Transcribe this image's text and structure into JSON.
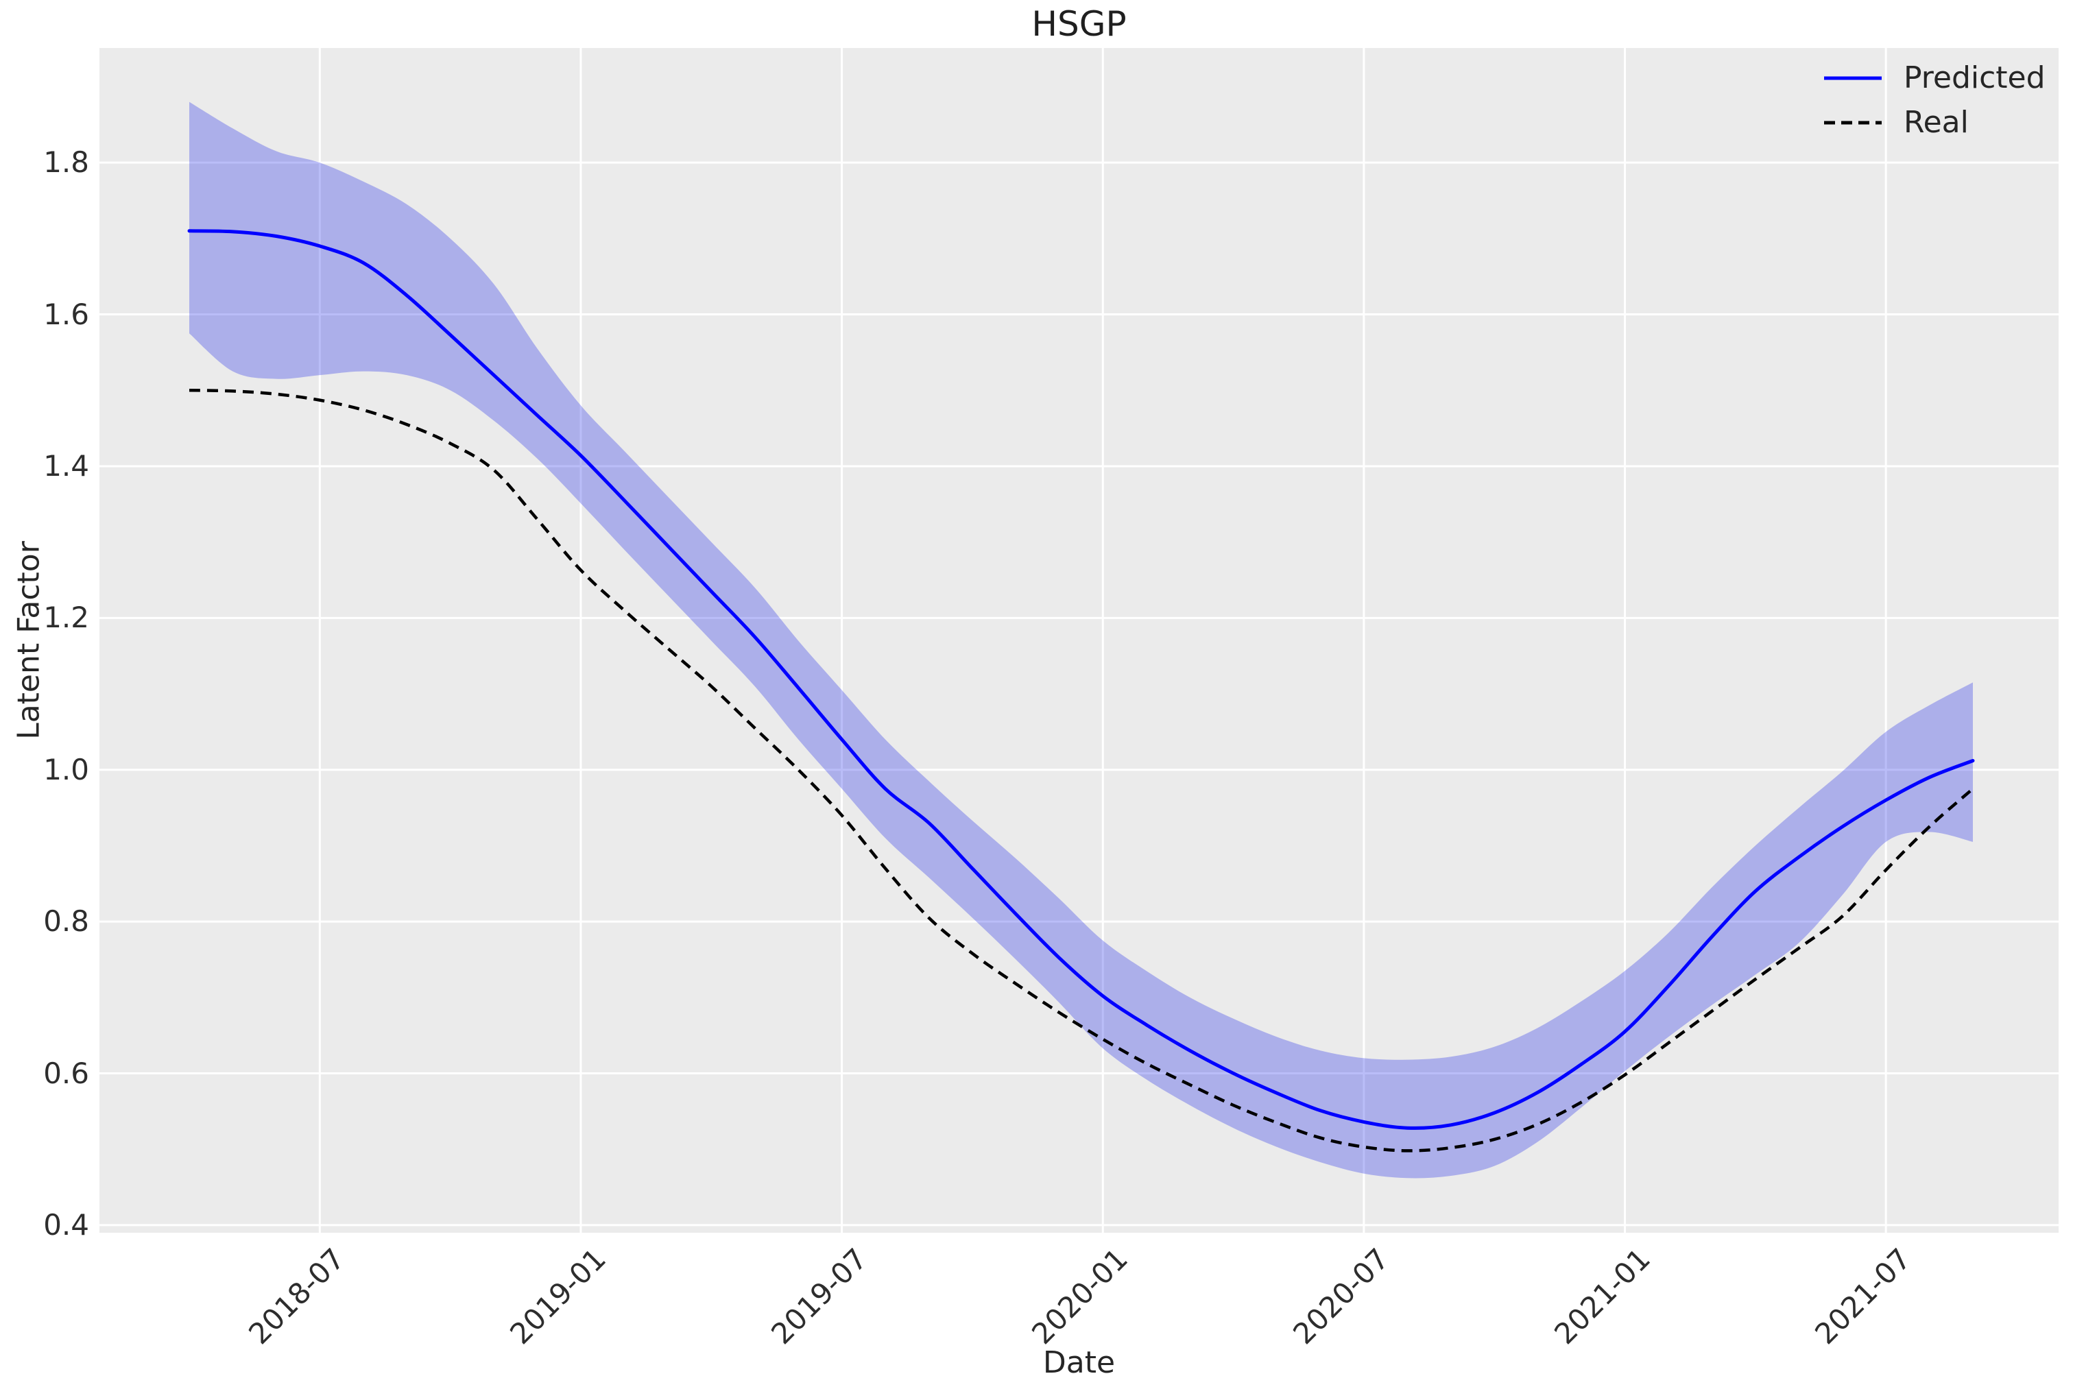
{
  "title": "HSGP",
  "chart_data": {
    "type": "line",
    "title": "HSGP",
    "xlabel": "Date",
    "ylabel": "Latent Factor",
    "grid": true,
    "legend_position": "upper right",
    "ylim": [
      0.39,
      1.95
    ],
    "x": [
      "2018-04",
      "2018-05",
      "2018-06",
      "2018-07",
      "2018-08",
      "2018-09",
      "2018-10",
      "2018-11",
      "2018-12",
      "2019-01",
      "2019-02",
      "2019-03",
      "2019-04",
      "2019-05",
      "2019-06",
      "2019-07",
      "2019-08",
      "2019-09",
      "2019-10",
      "2019-11",
      "2019-12",
      "2020-01",
      "2020-02",
      "2020-03",
      "2020-04",
      "2020-05",
      "2020-06",
      "2020-07",
      "2020-08",
      "2020-09",
      "2020-10",
      "2020-11",
      "2020-12",
      "2021-01",
      "2021-02",
      "2021-03",
      "2021-04",
      "2021-05",
      "2021-06",
      "2021-07",
      "2021-08",
      "2021-09"
    ],
    "x_tick_labels": [
      "2018-07",
      "2019-01",
      "2019-07",
      "2020-01",
      "2020-07",
      "2021-01",
      "2021-07"
    ],
    "x_tick_month_index": [
      3,
      9,
      15,
      21,
      27,
      33,
      39
    ],
    "y_tick_labels": [
      "0.4",
      "0.6",
      "0.8",
      "1.0",
      "1.2",
      "1.4",
      "1.6",
      "1.8"
    ],
    "y_tick_values": [
      0.4,
      0.6,
      0.8,
      1.0,
      1.2,
      1.4,
      1.6,
      1.8
    ],
    "series": [
      {
        "name": "Predicted",
        "style": "solid",
        "color": "#0000ff",
        "values": [
          1.71,
          1.709,
          1.703,
          1.69,
          1.668,
          1.625,
          1.573,
          1.52,
          1.467,
          1.414,
          1.355,
          1.295,
          1.235,
          1.175,
          1.108,
          1.04,
          0.975,
          0.93,
          0.87,
          0.81,
          0.752,
          0.702,
          0.664,
          0.63,
          0.6,
          0.574,
          0.551,
          0.536,
          0.528,
          0.532,
          0.548,
          0.575,
          0.612,
          0.655,
          0.715,
          0.78,
          0.84,
          0.885,
          0.925,
          0.96,
          0.99,
          1.012
        ]
      },
      {
        "name": "Real",
        "style": "dashed",
        "color": "#000000",
        "values": [
          1.5,
          1.499,
          1.495,
          1.487,
          1.474,
          1.455,
          1.43,
          1.395,
          1.33,
          1.263,
          1.21,
          1.16,
          1.11,
          1.055,
          1.0,
          0.94,
          0.87,
          0.805,
          0.758,
          0.718,
          0.68,
          0.645,
          0.613,
          0.585,
          0.558,
          0.535,
          0.515,
          0.503,
          0.498,
          0.502,
          0.513,
          0.533,
          0.562,
          0.598,
          0.64,
          0.682,
          0.724,
          0.765,
          0.807,
          0.868,
          0.925,
          0.975
        ]
      },
      {
        "name": "Predicted CI lower",
        "style": "band_lower",
        "color": "rgba(28,36,232,0.30)",
        "values": [
          1.575,
          1.525,
          1.515,
          1.52,
          1.525,
          1.52,
          1.5,
          1.46,
          1.41,
          1.351,
          1.29,
          1.23,
          1.17,
          1.11,
          1.04,
          0.975,
          0.91,
          0.858,
          0.805,
          0.75,
          0.693,
          0.633,
          0.592,
          0.558,
          0.528,
          0.503,
          0.483,
          0.468,
          0.462,
          0.465,
          0.478,
          0.51,
          0.555,
          0.603,
          0.648,
          0.69,
          0.73,
          0.772,
          0.835,
          0.905,
          0.918,
          0.905
        ]
      },
      {
        "name": "Predicted CI upper",
        "style": "band_upper",
        "color": "rgba(28,36,232,0.30)",
        "values": [
          1.88,
          1.845,
          1.815,
          1.8,
          1.775,
          1.745,
          1.7,
          1.64,
          1.555,
          1.48,
          1.42,
          1.36,
          1.3,
          1.24,
          1.17,
          1.105,
          1.04,
          0.985,
          0.933,
          0.883,
          0.83,
          0.775,
          0.735,
          0.7,
          0.672,
          0.648,
          0.63,
          0.62,
          0.618,
          0.622,
          0.635,
          0.66,
          0.695,
          0.735,
          0.785,
          0.845,
          0.9,
          0.95,
          0.998,
          1.05,
          1.085,
          1.115
        ]
      }
    ]
  },
  "colors": {
    "page_background": "#ffffff",
    "plot_background": "#ebebeb",
    "grid": "#ffffff",
    "predicted_line": "#0000ff",
    "real_line": "#000000",
    "ci_fill": "rgba(28,36,232,0.30)",
    "text": "#262626"
  }
}
